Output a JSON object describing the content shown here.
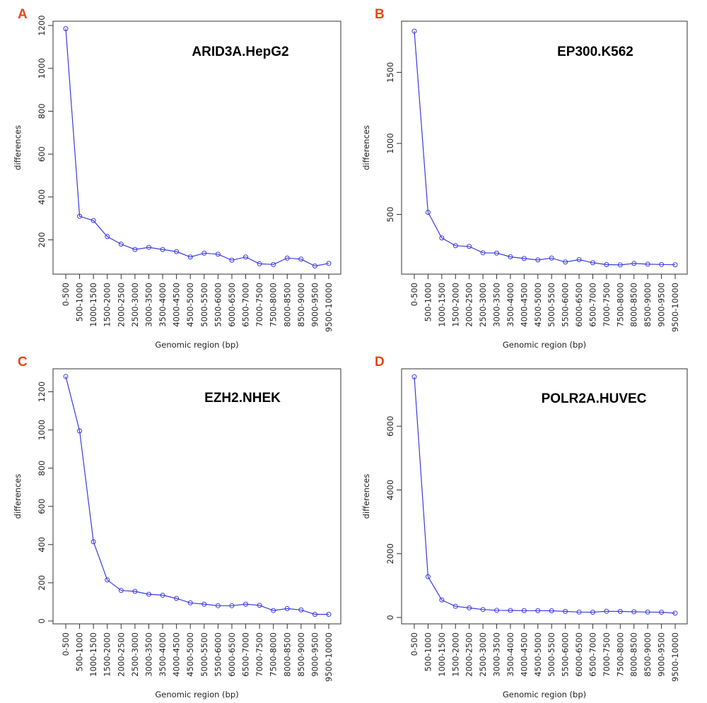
{
  "chart_data": [
    {
      "type": "line",
      "panel_label": "A",
      "title": "ARID3A.HepG2",
      "xlabel": "Genomic region (bp)",
      "ylabel": "differences",
      "categories": [
        "0-500",
        "500-1000",
        "1000-1500",
        "1500-2000",
        "2000-2500",
        "2500-3000",
        "3000-3500",
        "3500-4000",
        "4000-4500",
        "4500-5000",
        "5000-5500",
        "5500-6000",
        "6000-6500",
        "6500-7000",
        "7000-7500",
        "7500-8000",
        "8000-8500",
        "8500-9000",
        "9000-9500",
        "9500-10000"
      ],
      "values": [
        1185,
        310,
        290,
        215,
        180,
        155,
        165,
        155,
        145,
        120,
        138,
        133,
        105,
        120,
        88,
        85,
        115,
        110,
        78,
        90
      ],
      "yticks": [
        200,
        400,
        600,
        800,
        1000,
        1200
      ],
      "ylim": [
        40,
        1220
      ],
      "color": "#3a3ae6"
    },
    {
      "type": "line",
      "panel_label": "B",
      "title": "EP300.K562",
      "xlabel": "Genomic region (bp)",
      "ylabel": "differences",
      "categories": [
        "0-500",
        "500-1000",
        "1000-1500",
        "1500-2000",
        "2000-2500",
        "2500-3000",
        "3000-3500",
        "3500-4000",
        "4000-4500",
        "4500-5000",
        "5000-5500",
        "5500-6000",
        "6000-6500",
        "6500-7000",
        "7000-7500",
        "7500-8000",
        "8000-8500",
        "8500-9000",
        "9000-9500",
        "9500-10000"
      ],
      "values": [
        1790,
        515,
        335,
        280,
        275,
        230,
        228,
        202,
        190,
        180,
        193,
        165,
        182,
        160,
        147,
        145,
        155,
        150,
        148,
        146
      ],
      "yticks": [
        500,
        1000,
        1500
      ],
      "ylim": [
        80,
        1860
      ],
      "color": "#3a3ae6"
    },
    {
      "type": "line",
      "panel_label": "C",
      "title": "EZH2.NHEK",
      "xlabel": "Genomic region (bp)",
      "ylabel": "differences",
      "categories": [
        "0-500",
        "500-1000",
        "1000-1500",
        "1500-2000",
        "2000-2500",
        "2500-3000",
        "3000-3500",
        "3500-4000",
        "4000-4500",
        "4500-5000",
        "5000-5500",
        "5500-6000",
        "6000-6500",
        "6500-7000",
        "7000-7500",
        "7500-8000",
        "8000-8500",
        "8500-9000",
        "9000-9500",
        "9500-10000"
      ],
      "values": [
        1280,
        995,
        415,
        215,
        160,
        155,
        140,
        135,
        118,
        95,
        88,
        80,
        80,
        88,
        82,
        55,
        65,
        58,
        35,
        35
      ],
      "yticks": [
        0,
        200,
        400,
        600,
        800,
        1000,
        1200
      ],
      "ylim": [
        -15,
        1320
      ],
      "color": "#3a3ae6"
    },
    {
      "type": "line",
      "panel_label": "D",
      "title": "POLR2A.HUVEC",
      "xlabel": "Genomic region (bp)",
      "ylabel": "differences",
      "categories": [
        "0-500",
        "500-1000",
        "1000-1500",
        "1500-2000",
        "2000-2500",
        "2500-3000",
        "3000-3500",
        "3500-4000",
        "4000-4500",
        "4500-5000",
        "5000-5500",
        "5500-6000",
        "6000-6500",
        "6500-7000",
        "7000-7500",
        "7500-8000",
        "8000-8500",
        "8500-9000",
        "9000-9500",
        "9500-10000"
      ],
      "values": [
        7550,
        1280,
        550,
        350,
        300,
        250,
        225,
        220,
        215,
        215,
        210,
        190,
        170,
        165,
        195,
        190,
        180,
        170,
        165,
        135
      ],
      "yticks": [
        0,
        2000,
        4000,
        6000
      ],
      "ylim": [
        -200,
        7800
      ],
      "color": "#3a3ae6"
    }
  ]
}
